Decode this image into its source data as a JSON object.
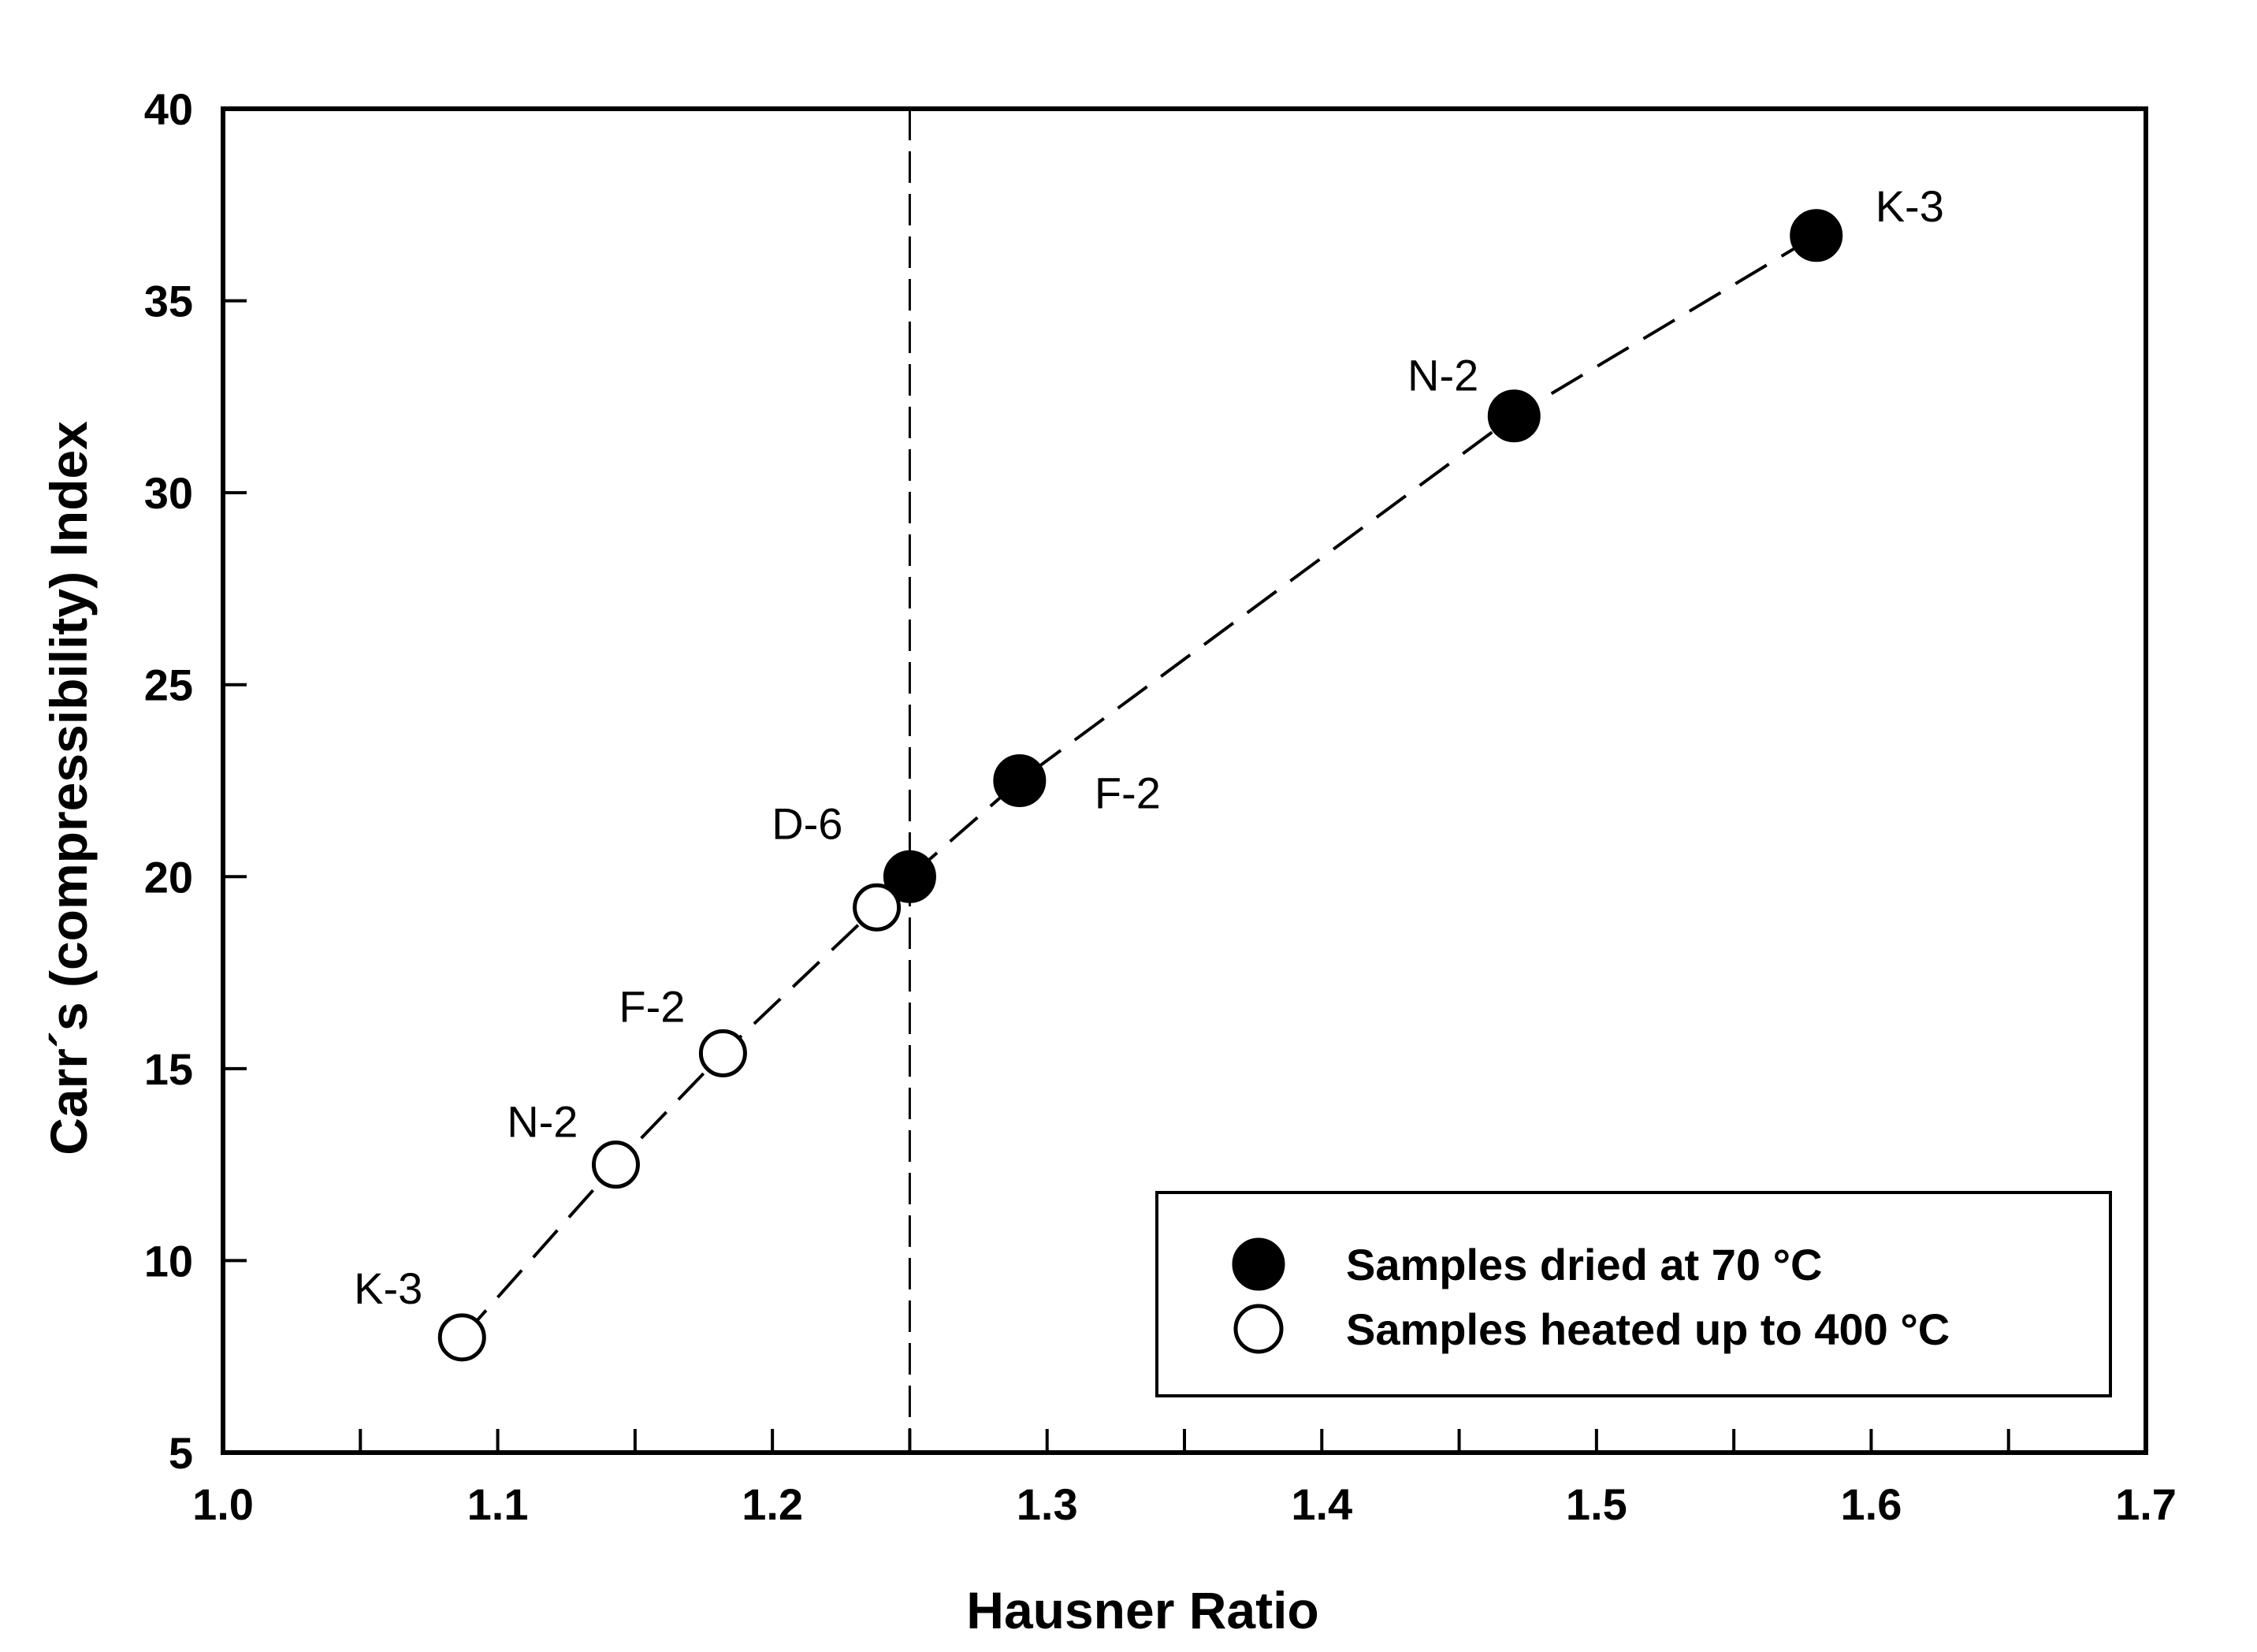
{
  "chart_data": {
    "type": "scatter",
    "title": "",
    "xlabel": "Hausner Ratio",
    "ylabel": "Carr´s (compressibility) Index",
    "xlim": [
      1.0,
      1.7
    ],
    "ylim": [
      5,
      40
    ],
    "x_ticks": [
      "1.0",
      "1.1",
      "1.2",
      "1.3",
      "1.4",
      "1.5",
      "1.6",
      "1.7"
    ],
    "y_ticks": [
      "5",
      "10",
      "15",
      "20",
      "25",
      "30",
      "35",
      "40"
    ],
    "vertical_reference_line_x": 1.25,
    "grid": false,
    "legend_position": "bottom-right",
    "series": [
      {
        "name": "Samples dried at 70 °C",
        "marker": "filled-circle",
        "color": "#000000",
        "points": [
          {
            "label": "D-6",
            "x": 1.25,
            "y": 20.0
          },
          {
            "label": "F-2",
            "x": 1.29,
            "y": 22.5
          },
          {
            "label": "N-2",
            "x": 1.47,
            "y": 32.0
          },
          {
            "label": "K-3",
            "x": 1.58,
            "y": 36.7
          }
        ]
      },
      {
        "name": "Samples heated up to 400 °C",
        "marker": "open-circle",
        "color": "#000000",
        "points": [
          {
            "label": "K-3",
            "x": 1.087,
            "y": 8.0
          },
          {
            "label": "N-2",
            "x": 1.143,
            "y": 12.5
          },
          {
            "label": "F-2",
            "x": 1.182,
            "y": 15.4
          },
          {
            "label": "",
            "x": 1.238,
            "y": 19.2
          }
        ]
      }
    ]
  }
}
